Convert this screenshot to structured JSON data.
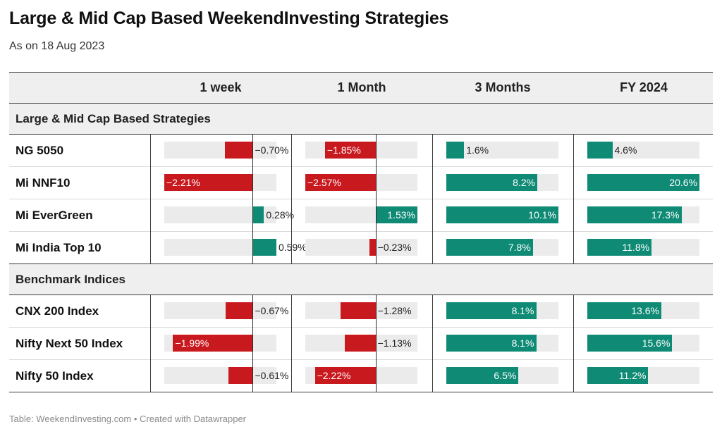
{
  "title": "Large & Mid Cap Based WeekendInvesting Strategies",
  "subtitle": "As on 18 Aug 2023",
  "footer": {
    "source": "Table: WeekendInvesting.com",
    "separator": " • ",
    "credit": "Created with Datawrapper"
  },
  "colors": {
    "positive": "#0f8a75",
    "negative": "#c8191f",
    "track": "#ebebeb",
    "header_bg": "#efefef"
  },
  "chart_data": {
    "type": "table",
    "columns": [
      "1 week",
      "1 Month",
      "3 Months",
      "FY 2024"
    ],
    "column_ranges": [
      [
        -2.21,
        0.59
      ],
      [
        -2.57,
        1.53
      ],
      [
        0,
        10.1
      ],
      [
        0,
        20.6
      ]
    ],
    "sections": [
      {
        "label": "Large & Mid Cap Based Strategies",
        "rows": [
          {
            "name": "NG 5050",
            "values": [
              -0.7,
              -1.85,
              1.6,
              4.6
            ],
            "labels": [
              "−0.70%",
              "−1.85%",
              "1.6%",
              "4.6%"
            ]
          },
          {
            "name": "Mi NNF10",
            "values": [
              -2.21,
              -2.57,
              8.2,
              20.6
            ],
            "labels": [
              "−2.21%",
              "−2.57%",
              "8.2%",
              "20.6%"
            ]
          },
          {
            "name": "Mi EverGreen",
            "values": [
              0.28,
              1.53,
              10.1,
              17.3
            ],
            "labels": [
              "0.28%",
              "1.53%",
              "10.1%",
              "17.3%"
            ]
          },
          {
            "name": "Mi India Top 10",
            "values": [
              0.59,
              -0.23,
              7.8,
              11.8
            ],
            "labels": [
              "0.59%",
              "−0.23%",
              "7.8%",
              "11.8%"
            ]
          }
        ]
      },
      {
        "label": "Benchmark Indices",
        "rows": [
          {
            "name": "CNX 200 Index",
            "values": [
              -0.67,
              -1.28,
              8.1,
              13.6
            ],
            "labels": [
              "−0.67%",
              "−1.28%",
              "8.1%",
              "13.6%"
            ]
          },
          {
            "name": "Nifty Next 50 Index",
            "values": [
              -1.99,
              -1.13,
              8.1,
              15.6
            ],
            "labels": [
              "−1.99%",
              "−1.13%",
              "8.1%",
              "15.6%"
            ]
          },
          {
            "name": "Nifty 50 Index",
            "values": [
              -0.61,
              -2.22,
              6.5,
              11.2
            ],
            "labels": [
              "−0.61%",
              "−2.22%",
              "6.5%",
              "11.2%"
            ]
          }
        ]
      }
    ]
  }
}
